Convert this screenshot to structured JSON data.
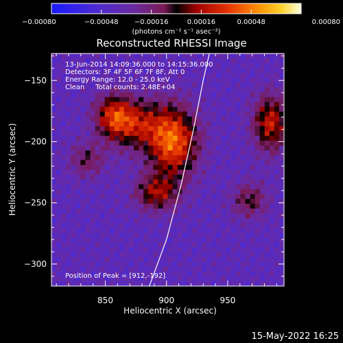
{
  "chart_data": {
    "type": "heatmap",
    "title": "Reconstructed RHESSI Image",
    "xlabel": "Heliocentric X (arcsec)",
    "ylabel": "Heliocentric Y (arcsec)",
    "xlim": [
      806,
      996
    ],
    "ylim": [
      -318,
      -128
    ],
    "x_ticks": [
      {
        "value": 850,
        "label": "850"
      },
      {
        "value": 900,
        "label": "900"
      },
      {
        "value": 950,
        "label": "950"
      }
    ],
    "y_ticks": [
      {
        "value": -150,
        "label": "−150"
      },
      {
        "value": -200,
        "label": "−200"
      },
      {
        "value": -250,
        "label": "−250"
      },
      {
        "value": -300,
        "label": "−300"
      }
    ],
    "colorbar": {
      "range": [
        -0.0008,
        0.0008
      ],
      "ticks": [
        {
          "value": -0.0008,
          "label": "−0.00080"
        },
        {
          "value": -0.00048,
          "label": "−0.00048"
        },
        {
          "value": -0.00016,
          "label": "−0.00016"
        },
        {
          "value": 0.00016,
          "label": "0.00016"
        },
        {
          "value": 0.00048,
          "label": "0.00048"
        },
        {
          "value": 0.0008,
          "label": "0.00080"
        }
      ],
      "units_label": "(photons cm⁻² s⁻¹ asec⁻²)"
    },
    "annotations": [
      "13-Jun-2014 14:09:36.000 to 14:15:36.000",
      "Detectors: 3F 4F 5F 6F 7F 8F, Att 0",
      "Energy Range: 12.0 - 25.0 keV",
      "Clean     Total counts: 2.48E+04"
    ],
    "peak_label": "Position of Peak = [912,-192]",
    "peak": {
      "x": 912,
      "y": -192
    },
    "limb_points": [
      [
        886,
        -318
      ],
      [
        900,
        -280
      ],
      [
        912,
        -235
      ],
      [
        922,
        -190
      ],
      [
        930,
        -150
      ],
      [
        935,
        -128
      ]
    ],
    "sources": [
      {
        "x": 905,
        "y": -200,
        "amplitude": 0.0008,
        "sigma_x": 14,
        "sigma_y": 20
      },
      {
        "x": 872,
        "y": -185,
        "amplitude": 0.00055,
        "sigma_x": 16,
        "sigma_y": 14
      },
      {
        "x": 856,
        "y": -178,
        "amplitude": 0.00045,
        "sigma_x": 10,
        "sigma_y": 12
      },
      {
        "x": 892,
        "y": -242,
        "amplitude": 0.0005,
        "sigma_x": 12,
        "sigma_y": 10
      },
      {
        "x": 985,
        "y": -185,
        "amplitude": 0.0006,
        "sigma_x": 10,
        "sigma_y": 16
      },
      {
        "x": 968,
        "y": -248,
        "amplitude": 0.00035,
        "sigma_x": 10,
        "sigma_y": 10
      },
      {
        "x": 835,
        "y": -215,
        "amplitude": 0.0003,
        "sigma_x": 10,
        "sigma_y": 10
      }
    ],
    "background": -0.00038
  },
  "footer_date": "15‑May‑2022 16:25"
}
